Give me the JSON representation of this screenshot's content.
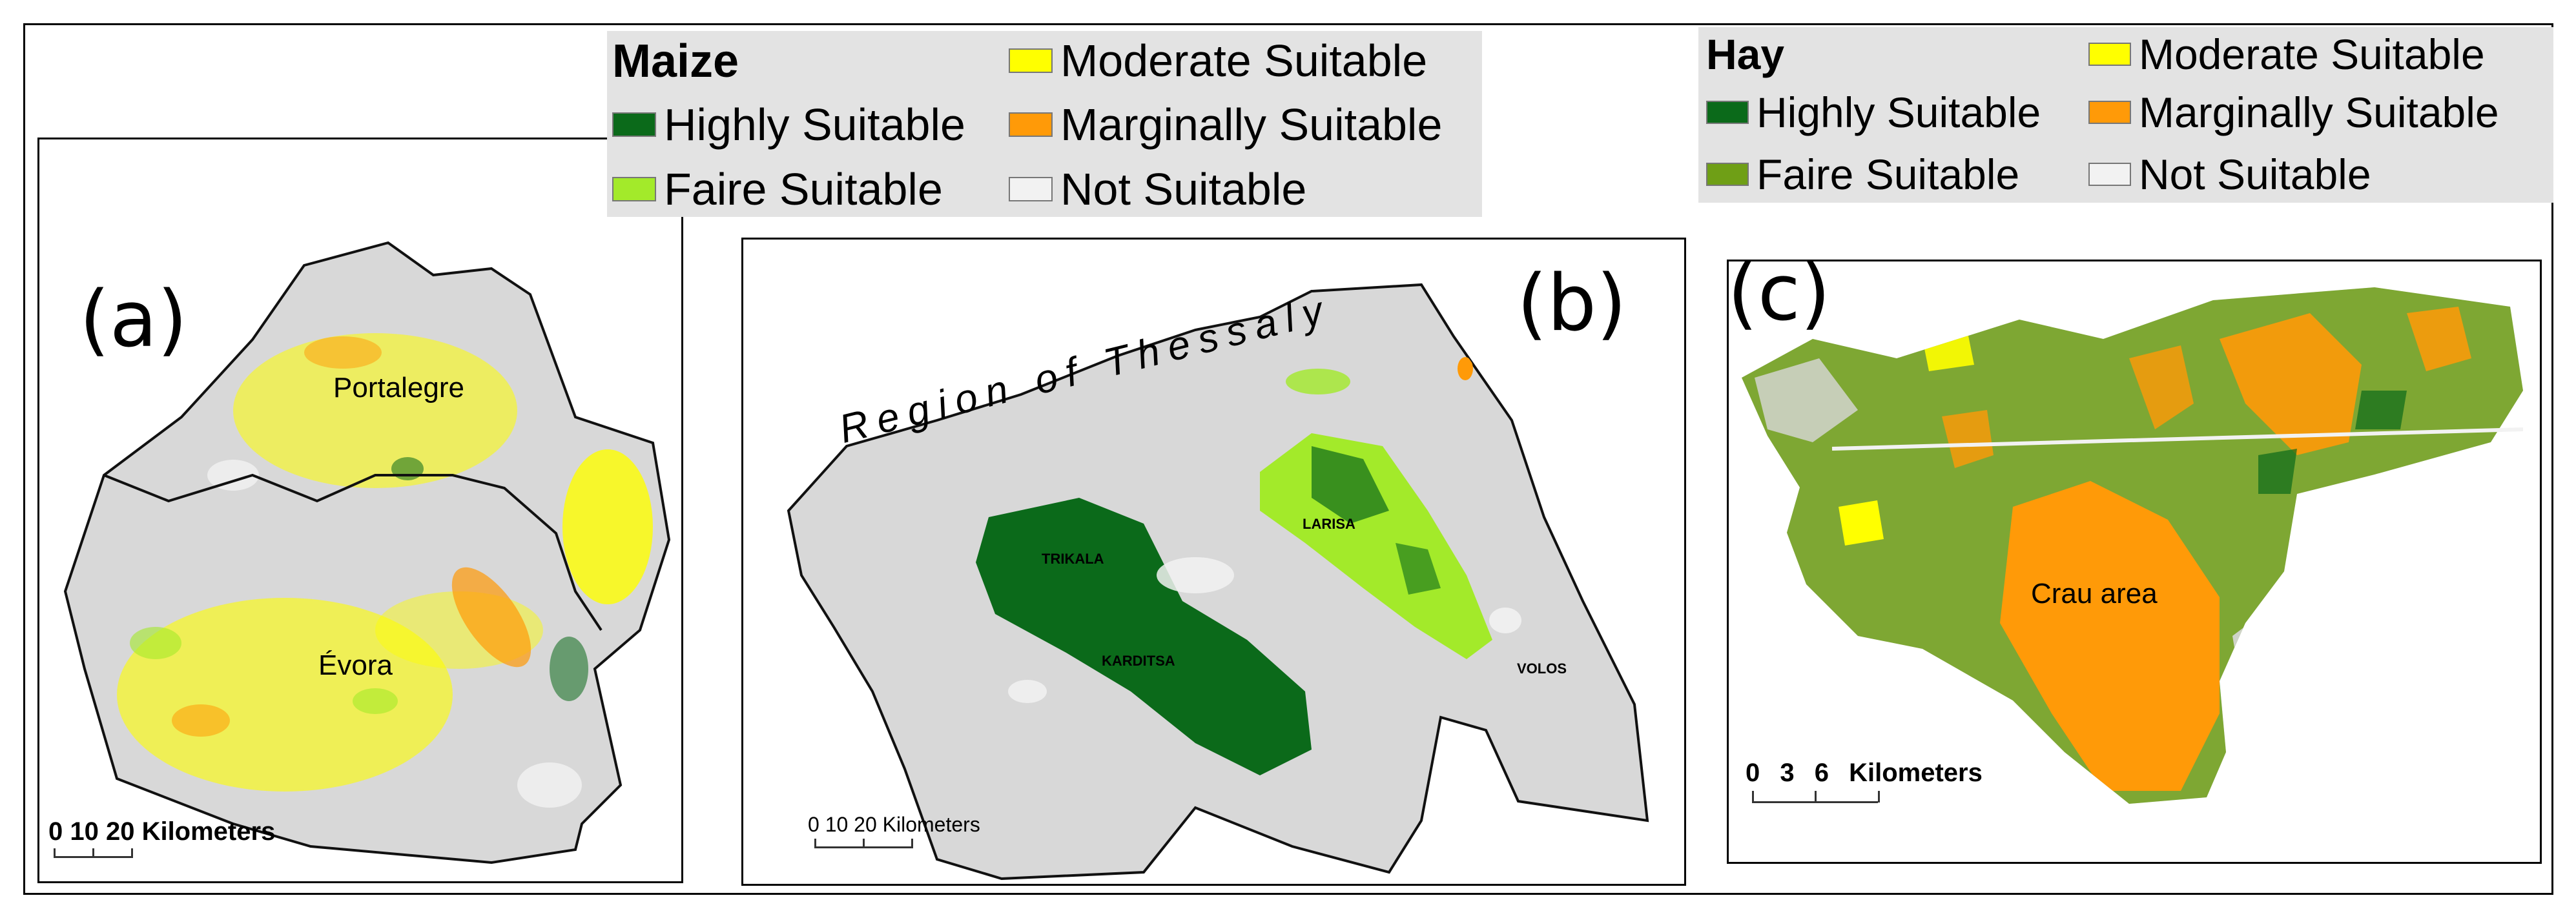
{
  "figure": {
    "colors": {
      "highly": "#0b6a1a",
      "faire_maize": "#a3ea2a",
      "faire_hay": "#6f9f16",
      "moderate": "#ffff00",
      "marginal": "#ff9a08",
      "not": "#f2f2f2",
      "land": "#d8d8d8",
      "legend_bg": "#e3e3e3"
    }
  },
  "maize_legend": {
    "title": "Maize",
    "items": [
      {
        "label": "Highly Suitable",
        "color": "#0b6a1a"
      },
      {
        "label": "Faire Suitable",
        "color": "#a3ea2a"
      },
      {
        "label": "Moderate Suitable",
        "color": "#ffff00"
      },
      {
        "label": "Marginally Suitable",
        "color": "#ff9a08"
      },
      {
        "label": "Not Suitable",
        "color": "#f2f2f2"
      }
    ]
  },
  "hay_legend": {
    "title": "Hay",
    "items": [
      {
        "label": "Highly Suitable",
        "color": "#0b6a1a"
      },
      {
        "label": "Faire Suitable",
        "color": "#6f9f16"
      },
      {
        "label": "Moderate Suitable",
        "color": "#ffff00"
      },
      {
        "label": "Marginally Suitable",
        "color": "#ff9a08"
      },
      {
        "label": "Not Suitable",
        "color": "#f2f2f2"
      }
    ]
  },
  "panel_a": {
    "letter": "(a)",
    "places": [
      "Portalegre",
      "Évora"
    ],
    "scale": "0 10 20 Kilometers"
  },
  "panel_b": {
    "letter": "(b)",
    "region": "Region of Thessaly",
    "cities": [
      "TRIKALA",
      "KARDITSA",
      "LARISA",
      "VOLOS"
    ],
    "scale": "0 10 20 Kilometers"
  },
  "panel_c": {
    "letter": "(c)",
    "area": "Crau area",
    "scale": "0 3 6 Kilometers"
  }
}
